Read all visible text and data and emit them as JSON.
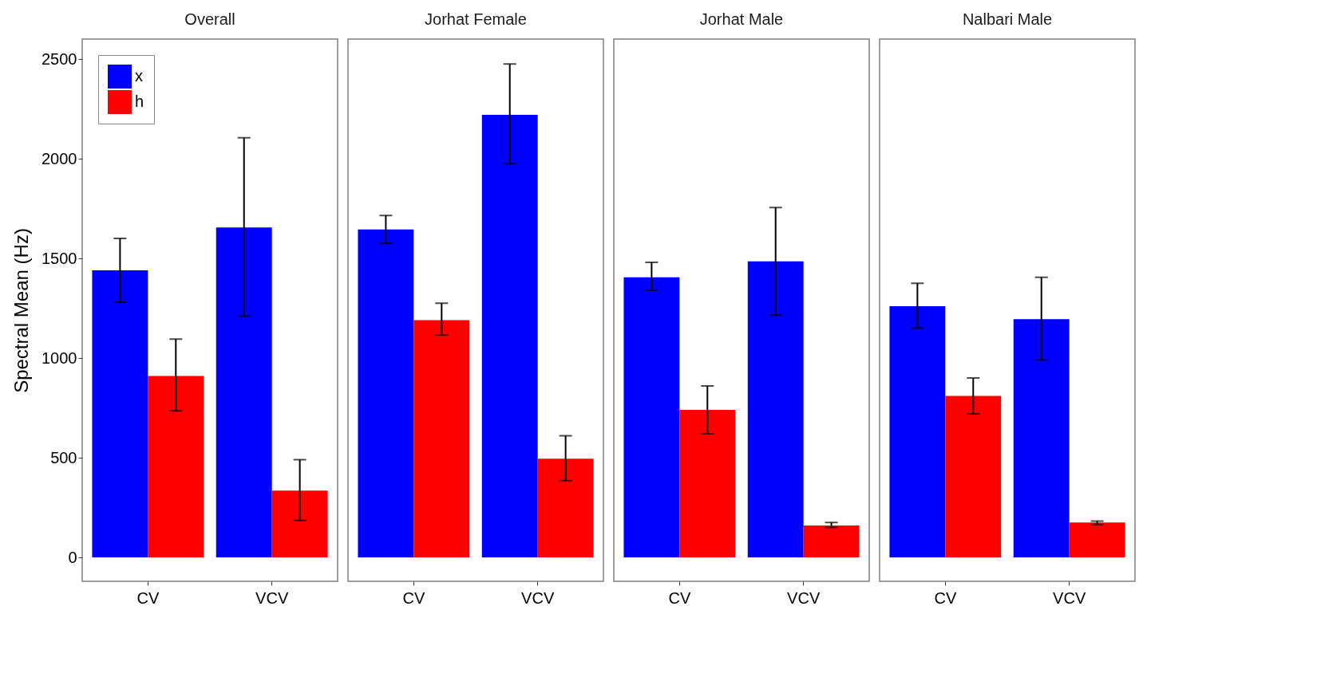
{
  "chart_data": [
    {
      "type": "bar",
      "title": "Overall",
      "ylabel": "Spectral Mean (Hz)",
      "categories": [
        "CV",
        "VCV"
      ],
      "ylim": [
        -120,
        2600
      ],
      "yticks": [
        0,
        500,
        1000,
        1500,
        2000,
        2500
      ],
      "grid": false,
      "legend": "top left",
      "series": [
        {
          "name": "x",
          "color": "#0000ff",
          "values": [
            1440,
            1655
          ],
          "errors": [
            [
              1280,
              1600
            ],
            [
              1210,
              2105
            ]
          ]
        },
        {
          "name": "h",
          "color": "#ff0000",
          "values": [
            910,
            335
          ],
          "errors": [
            [
              735,
              1095
            ],
            [
              185,
              490
            ]
          ]
        }
      ]
    },
    {
      "type": "bar",
      "title": "Jorhat Female",
      "categories": [
        "CV",
        "VCV"
      ],
      "ylim": [
        -120,
        2600
      ],
      "yticks": [
        0,
        500,
        1000,
        1500,
        2000,
        2500
      ],
      "grid": false,
      "tick_labels": "x",
      "series": [
        {
          "color": "#0000ff",
          "values": [
            1645,
            2220
          ],
          "errors": [
            [
              1575,
              1715
            ],
            [
              1975,
              2475
            ]
          ]
        },
        {
          "color": "#ff0000",
          "values": [
            1190,
            495
          ],
          "errors": [
            [
              1115,
              1275
            ],
            [
              385,
              610
            ]
          ]
        }
      ]
    },
    {
      "type": "bar",
      "title": "Jorhat Male",
      "categories": [
        "CV",
        "VCV"
      ],
      "ylim": [
        -120,
        2600
      ],
      "yticks": [
        0,
        500,
        1000,
        1500,
        2000,
        2500
      ],
      "grid": false,
      "tick_labels": "x",
      "series": [
        {
          "color": "#0000ff",
          "values": [
            1405,
            1485
          ],
          "errors": [
            [
              1340,
              1480
            ],
            [
              1215,
              1755
            ]
          ]
        },
        {
          "color": "#ff0000",
          "values": [
            740,
            160
          ],
          "errors": [
            [
              620,
              860
            ],
            [
              150,
              175
            ]
          ]
        }
      ]
    },
    {
      "type": "bar",
      "title": "Nalbari Male",
      "categories": [
        "CV",
        "VCV"
      ],
      "ylim": [
        -120,
        2600
      ],
      "yticks": [
        0,
        500,
        1000,
        1500,
        2000,
        2500
      ],
      "grid": false,
      "tick_labels": "x",
      "series": [
        {
          "color": "#0000ff",
          "values": [
            1260,
            1195
          ],
          "errors": [
            [
              1150,
              1375
            ],
            [
              990,
              1405
            ]
          ]
        },
        {
          "color": "#ff0000",
          "values": [
            810,
            175
          ],
          "errors": [
            [
              720,
              900
            ],
            [
              165,
              182
            ]
          ]
        }
      ]
    }
  ]
}
